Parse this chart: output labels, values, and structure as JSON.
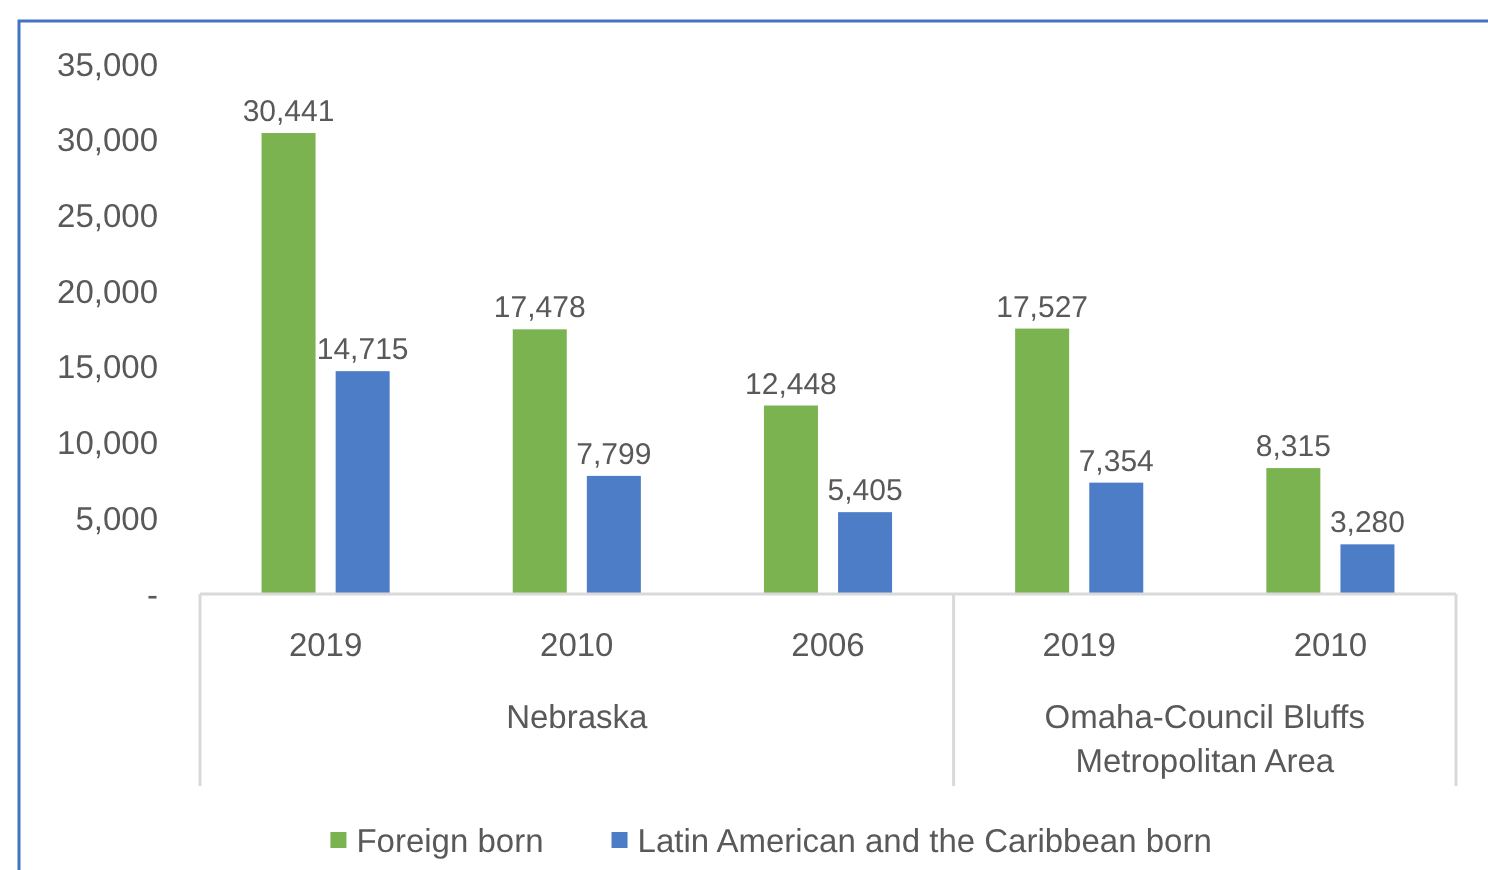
{
  "chart_data": {
    "type": "bar",
    "categories": [
      "2019",
      "2010",
      "2006",
      "2019",
      "2010"
    ],
    "series": [
      {
        "name": "Foreign born",
        "color": "#7ab34f",
        "values": [
          30441,
          17478,
          12448,
          17527,
          8315
        ],
        "value_labels": [
          "30,441",
          "17,478",
          "12,448",
          "17,527",
          "8,315"
        ]
      },
      {
        "name": "Latin American and the Caribbean born",
        "color": "#4e7dc8",
        "values": [
          14715,
          7799,
          5405,
          7354,
          3280
        ],
        "value_labels": [
          "14,715",
          "7,799",
          "5,405",
          "7,354",
          "3,280"
        ]
      }
    ],
    "ylim": [
      0,
      35000
    ],
    "yticks": [
      {
        "value": 0,
        "label": "-"
      },
      {
        "value": 5000,
        "label": "5,000"
      },
      {
        "value": 10000,
        "label": "10,000"
      },
      {
        "value": 15000,
        "label": "15,000"
      },
      {
        "value": 20000,
        "label": "20,000"
      },
      {
        "value": 25000,
        "label": "25,000"
      },
      {
        "value": 30000,
        "label": "30,000"
      },
      {
        "value": 35000,
        "label": "35,000"
      }
    ],
    "legend": "bottom",
    "annotations": [
      "Nebraska",
      "Omaha-Council Bluffs Metropolitan Area"
    ]
  }
}
